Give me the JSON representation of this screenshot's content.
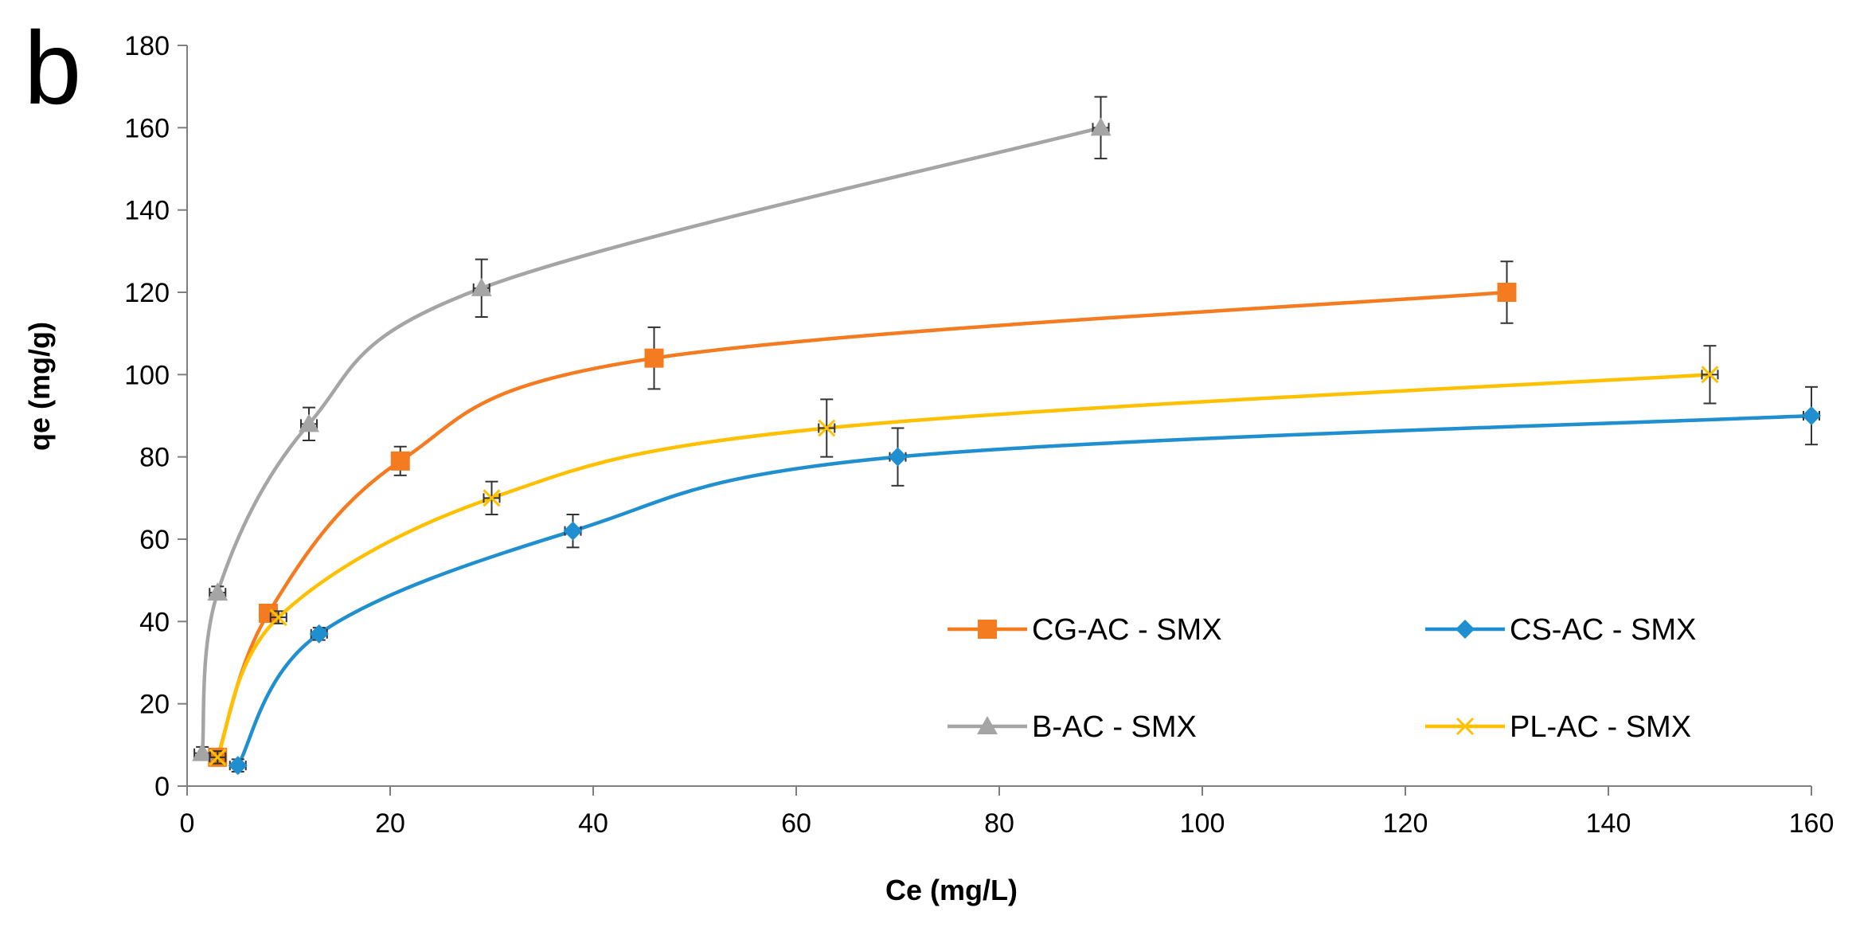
{
  "panel_label": "b",
  "chart_data": {
    "type": "scatter",
    "xlabel": "Ce (mg/L)",
    "ylabel": "qe (mg/g)",
    "xlim": [
      0,
      160
    ],
    "ylim": [
      0,
      180
    ],
    "xticks": [
      0,
      20,
      40,
      60,
      80,
      100,
      120,
      140,
      160
    ],
    "yticks": [
      0,
      20,
      40,
      60,
      80,
      100,
      120,
      140,
      160,
      180
    ],
    "grid": false,
    "legend_position": "bottom-right",
    "smooth_lines": true,
    "error_bars": true,
    "series": [
      {
        "name": "CG-AC - SMX",
        "color": "#F47B20",
        "marker": "square",
        "points": [
          {
            "x": 3,
            "y": 7,
            "err": 1.5
          },
          {
            "x": 8,
            "y": 42,
            "err": 1.5
          },
          {
            "x": 21,
            "y": 79,
            "err": 3.5
          },
          {
            "x": 46,
            "y": 104,
            "err": 7.5
          },
          {
            "x": 130,
            "y": 120,
            "err": 7.5
          }
        ]
      },
      {
        "name": "CS-AC - SMX",
        "color": "#1F8FD0",
        "marker": "diamond",
        "points": [
          {
            "x": 5,
            "y": 5,
            "err": 1.5
          },
          {
            "x": 13,
            "y": 37,
            "err": 1.5
          },
          {
            "x": 38,
            "y": 62,
            "err": 4
          },
          {
            "x": 70,
            "y": 80,
            "err": 7
          },
          {
            "x": 160,
            "y": 90,
            "err": 7
          }
        ]
      },
      {
        "name": "B-AC - SMX",
        "color": "#A5A5A5",
        "marker": "triangle",
        "points": [
          {
            "x": 1.5,
            "y": 8,
            "err": 1.5
          },
          {
            "x": 3,
            "y": 47,
            "err": 1.5
          },
          {
            "x": 12,
            "y": 88,
            "err": 4
          },
          {
            "x": 29,
            "y": 121,
            "err": 7
          },
          {
            "x": 90,
            "y": 160,
            "err": 7.5
          }
        ]
      },
      {
        "name": "PL-AC - SMX",
        "color": "#FFC000",
        "marker": "x",
        "points": [
          {
            "x": 3,
            "y": 7,
            "err": 1.5
          },
          {
            "x": 9,
            "y": 41,
            "err": 1.5
          },
          {
            "x": 30,
            "y": 70,
            "err": 4
          },
          {
            "x": 63,
            "y": 87,
            "err": 7
          },
          {
            "x": 150,
            "y": 100,
            "err": 7
          }
        ]
      }
    ]
  }
}
